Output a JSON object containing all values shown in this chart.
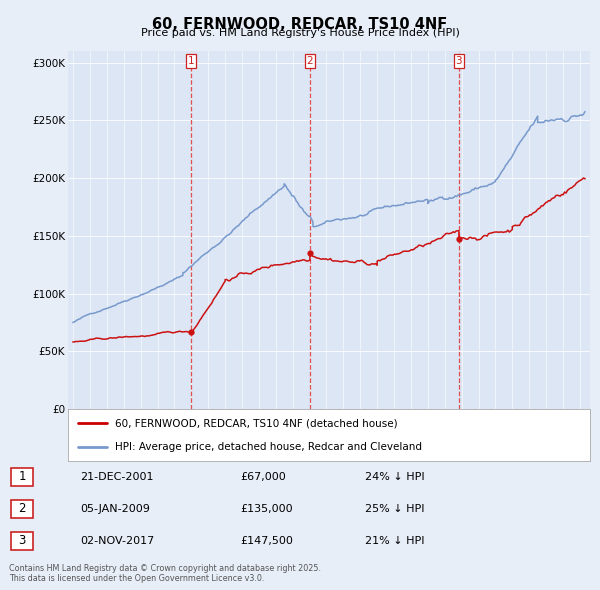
{
  "title": "60, FERNWOOD, REDCAR, TS10 4NF",
  "subtitle": "Price paid vs. HM Land Registry's House Price Index (HPI)",
  "background_color": "#e8eef8",
  "plot_bg_color": "#dce6f5",
  "ylim": [
    0,
    310000
  ],
  "yticks": [
    0,
    50000,
    100000,
    150000,
    200000,
    250000,
    300000
  ],
  "ytick_labels": [
    "£0",
    "£50K",
    "£100K",
    "£150K",
    "£200K",
    "£250K",
    "£300K"
  ],
  "vline_dates": [
    2001.97,
    2009.02,
    2017.84
  ],
  "vline_labels": [
    "1",
    "2",
    "3"
  ],
  "legend_entries": [
    "60, FERNWOOD, REDCAR, TS10 4NF (detached house)",
    "HPI: Average price, detached house, Redcar and Cleveland"
  ],
  "legend_colors": [
    "#cc0000",
    "#7799cc"
  ],
  "sale_points": [
    {
      "date": 2001.97,
      "price": 67000
    },
    {
      "date": 2009.02,
      "price": 135000
    },
    {
      "date": 2017.84,
      "price": 147500
    }
  ],
  "table_data": [
    [
      "1",
      "21-DEC-2001",
      "£67,000",
      "24% ↓ HPI"
    ],
    [
      "2",
      "05-JAN-2009",
      "£135,000",
      "25% ↓ HPI"
    ],
    [
      "3",
      "02-NOV-2017",
      "£147,500",
      "21% ↓ HPI"
    ]
  ],
  "footnote": "Contains HM Land Registry data © Crown copyright and database right 2025.\nThis data is licensed under the Open Government Licence v3.0.",
  "red_line_color": "#cc1111",
  "blue_line_color": "#7799cc"
}
